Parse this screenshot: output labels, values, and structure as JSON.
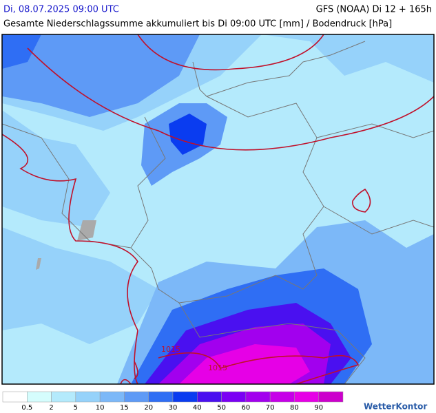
{
  "header": {
    "left": "Di, 08.07.2025 09:00 UTC",
    "right": "GFS (NOAA) Di 12 + 165h",
    "subtitle": "Gesamte Niederschlagssumme akkumuliert bis Di 09:00 UTC [mm] / Bodendruck [hPa]"
  },
  "map": {
    "isobar_labels": [
      "1015",
      "1015"
    ]
  },
  "legend": {
    "colors": [
      "#ffffff",
      "#d5fdfd",
      "#b4eafc",
      "#96d2fa",
      "#7cb8f8",
      "#5e9af6",
      "#2f6ef4",
      "#0a3cf0",
      "#4a10f0",
      "#7a00f4",
      "#a200ee",
      "#c600e8",
      "#e600e6",
      "#cc00cc"
    ],
    "labels": [
      0.5,
      2,
      5,
      10,
      15,
      20,
      30,
      40,
      50,
      60,
      70,
      80,
      90
    ]
  },
  "logo": "WetterKontor"
}
